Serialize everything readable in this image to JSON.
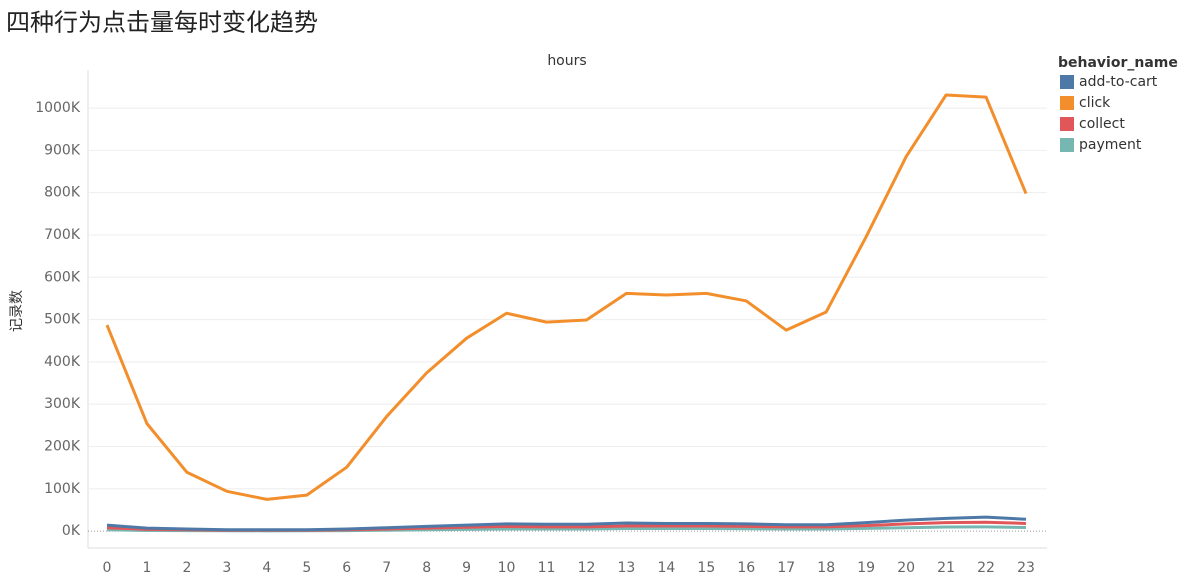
{
  "chart_data": {
    "type": "line",
    "title": "四种行为点击量每时变化趋势",
    "column_header": "hours",
    "y_label": "记录数",
    "legend_title": "behavior_name",
    "categories": [
      "0",
      "1",
      "2",
      "3",
      "4",
      "5",
      "6",
      "7",
      "8",
      "9",
      "10",
      "11",
      "12",
      "13",
      "14",
      "15",
      "16",
      "17",
      "18",
      "19",
      "20",
      "21",
      "22",
      "23"
    ],
    "series": [
      {
        "name": "add-to-cart",
        "color": "#4e79a7",
        "values": [
          14000,
          7000,
          5000,
          3000,
          3000,
          3000,
          5000,
          8000,
          11000,
          14000,
          17000,
          16000,
          16000,
          19000,
          18000,
          18000,
          17000,
          15000,
          15000,
          20000,
          26000,
          30000,
          33000,
          28000
        ]
      },
      {
        "name": "click",
        "color": "#f28e2b",
        "values": [
          487000,
          254000,
          139000,
          94000,
          75000,
          85000,
          151000,
          271000,
          374000,
          456000,
          515000,
          494000,
          499000,
          562000,
          558000,
          562000,
          544000,
          475000,
          518000,
          696000,
          885000,
          1031000,
          1026000,
          798000
        ]
      },
      {
        "name": "collect",
        "color": "#e15759",
        "values": [
          8000,
          4000,
          3000,
          2000,
          2000,
          2000,
          3000,
          5000,
          7000,
          9000,
          11000,
          10000,
          10000,
          12000,
          12000,
          12000,
          11000,
          10000,
          10000,
          13000,
          17000,
          20000,
          21000,
          18000
        ]
      },
      {
        "name": "payment",
        "color": "#76b7b2",
        "values": [
          3000,
          1500,
          1000,
          700,
          600,
          700,
          1100,
          2000,
          3000,
          4000,
          5000,
          5000,
          5000,
          6000,
          6000,
          6000,
          5500,
          5000,
          5000,
          6500,
          8000,
          9500,
          10000,
          8500
        ]
      }
    ],
    "ylim": [
      -40000,
      1090000
    ],
    "yticks": [
      {
        "value": 0,
        "label": "0K"
      },
      {
        "value": 100000,
        "label": "100K"
      },
      {
        "value": 200000,
        "label": "200K"
      },
      {
        "value": 300000,
        "label": "300K"
      },
      {
        "value": 400000,
        "label": "400K"
      },
      {
        "value": 500000,
        "label": "500K"
      },
      {
        "value": 600000,
        "label": "600K"
      },
      {
        "value": 700000,
        "label": "700K"
      },
      {
        "value": 800000,
        "label": "800K"
      },
      {
        "value": 900000,
        "label": "900K"
      },
      {
        "value": 1000000,
        "label": "1000K"
      }
    ],
    "grid": true
  }
}
